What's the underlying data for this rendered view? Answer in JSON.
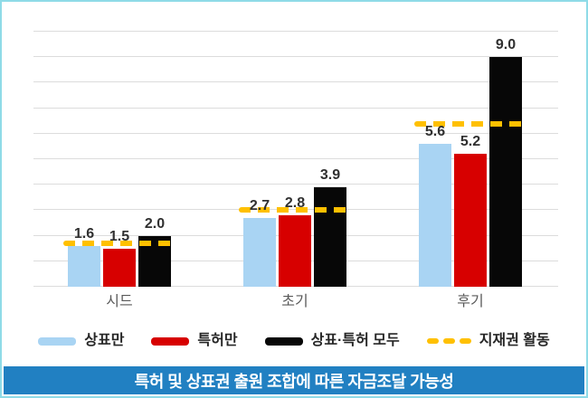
{
  "title": {
    "text": "특허 및 상표권 출원 조합에 따른 자금조달 가능성"
  },
  "colors": {
    "bar_trademark_only": "#a9d4f3",
    "bar_patent_only": "#d70000",
    "bar_both": "#070707",
    "ipr_line": "#ffc000",
    "title_bar_bg": "#2180c2",
    "title_text": "#ffffff",
    "frame_border": "#8fdbe7",
    "gridline": "#dcdcdc",
    "axis_label": "#595959",
    "value_label": "#303030"
  },
  "chart_data": {
    "type": "bar",
    "categories": [
      "시드",
      "초기",
      "후기"
    ],
    "series": [
      {
        "name": "상표만",
        "color": "#a9d4f3",
        "values": [
          1.6,
          2.7,
          5.6
        ]
      },
      {
        "name": "특허만",
        "color": "#d70000",
        "values": [
          1.5,
          2.8,
          5.2
        ]
      },
      {
        "name": "상표·특허 모두",
        "color": "#070707",
        "values": [
          2.0,
          3.9,
          9.0
        ]
      }
    ],
    "line_series": {
      "name": "지재권 활동",
      "style": "dashed",
      "color": "#ffc000",
      "values": [
        1.7,
        3.0,
        6.4
      ]
    },
    "title": "특허 및 상표권 출원 조합에 따른 자금조달 가능성",
    "xlabel": "",
    "ylabel": "",
    "ylim": [
      0,
      10
    ],
    "gridline_step": 1,
    "grid": true,
    "y_axis_labels_visible": false,
    "value_labels": true,
    "legend_position": "bottom"
  }
}
